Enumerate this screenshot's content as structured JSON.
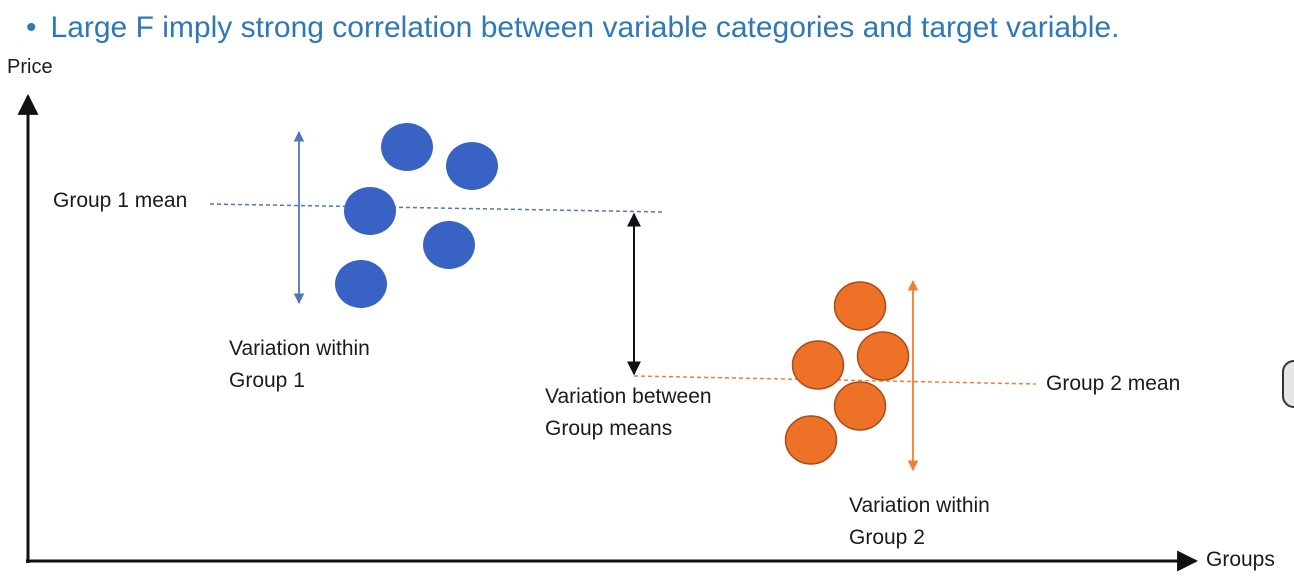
{
  "heading": {
    "bullet": "•",
    "text": "Large F imply strong correlation between variable categories and target variable."
  },
  "axes": {
    "y_label": "Price",
    "x_label": "Groups"
  },
  "annotations": {
    "group1_mean": "Group 1 mean",
    "group2_mean": "Group 2 mean",
    "variation_within_group1": [
      "Variation within",
      "Group 1"
    ],
    "variation_between": [
      "Variation between",
      "Group means"
    ],
    "variation_within_group2": [
      "Variation within",
      "Group 2"
    ]
  },
  "colors": {
    "heading": "#2e78b8",
    "group1": "#3862c4",
    "group2": "#ee7128",
    "axis": "#111111",
    "group1_arrow": "#4d78b8",
    "group2_arrow": "#ee7f36"
  },
  "icons": {
    "side_control": "circle-toggle-icon"
  }
}
